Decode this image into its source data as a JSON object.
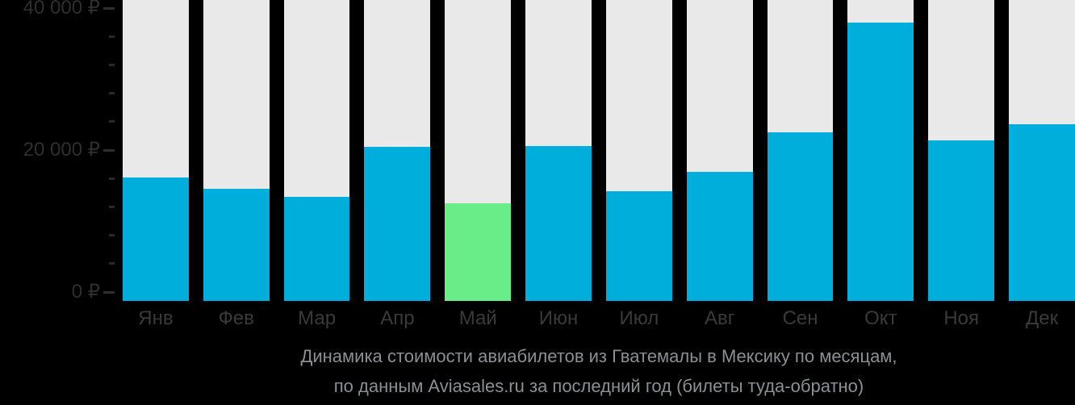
{
  "chart_data": {
    "type": "bar",
    "title": "Динамика стоимости авиабилетов из Гватемалы в Мексику по месяцам, по данным Aviasales.ru за последний год (билеты туда-обратно)",
    "title_lines": [
      "Динамика стоимости авиабилетов из Гватемалы в Мексику по месяцам,",
      "по данным Aviasales.ru за последний год (билеты туда-обратно)"
    ],
    "categories": [
      "Янв",
      "Фев",
      "Мар",
      "Апр",
      "Май",
      "Июн",
      "Июл",
      "Авг",
      "Сен",
      "Окт",
      "Ноя",
      "Дек"
    ],
    "values": [
      16100,
      14500,
      13400,
      20500,
      12500,
      20600,
      14200,
      16900,
      22500,
      38000,
      21400,
      23600
    ],
    "unit": "₽",
    "highlight_index": 4,
    "highlight_meaning": "cheapest month",
    "xlabel": "",
    "ylabel": "",
    "ylim": [
      0,
      40000
    ],
    "y_major_ticks": [
      {
        "value": 0,
        "label": "0 ₽"
      },
      {
        "value": 20000,
        "label": "20 000 ₽"
      },
      {
        "value": 40000,
        "label": "40 000 ₽"
      }
    ],
    "y_minor_step": 4000,
    "grid": false,
    "legend_position": "none",
    "colors": {
      "background": "#000000",
      "bar": "#00aedc",
      "bar_highlight": "#68ed88",
      "column_track": "#e9e9e9",
      "axis_label": "#2e2e2e",
      "month_label": "#3a3a3a",
      "caption": "#8c8f91"
    }
  }
}
